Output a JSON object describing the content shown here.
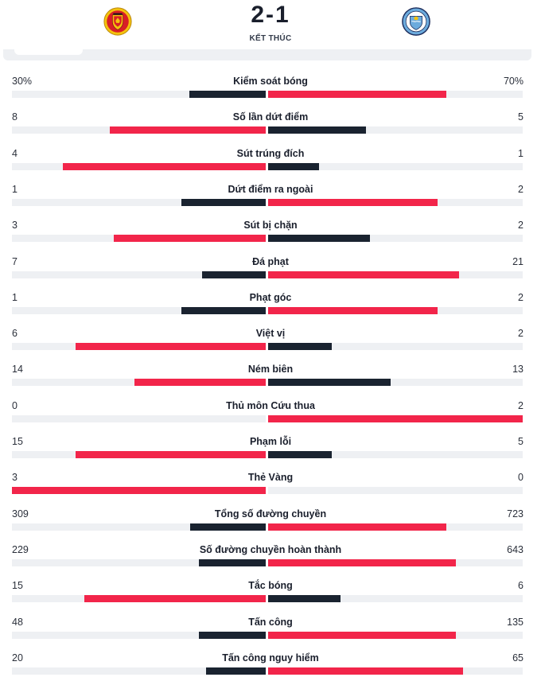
{
  "match": {
    "home_score": "2",
    "away_score": "1",
    "score_separator": "-",
    "status": "KẾT THÚC",
    "home_logo": "manchester-united-crest",
    "away_logo": "manchester-city-crest"
  },
  "colors": {
    "winner": "#f2254a",
    "loser": "#1a2330",
    "track": "#eef0f3"
  },
  "stats": [
    {
      "label": "Kiểm soát bóng",
      "home": "30%",
      "away": "70%",
      "hv": 30,
      "av": 70
    },
    {
      "label": "Số lần dứt điểm",
      "home": "8",
      "away": "5",
      "hv": 8,
      "av": 5
    },
    {
      "label": "Sút trúng đích",
      "home": "4",
      "away": "1",
      "hv": 4,
      "av": 1
    },
    {
      "label": "Dứt điểm ra ngoài",
      "home": "1",
      "away": "2",
      "hv": 1,
      "av": 2
    },
    {
      "label": "Sút bị chặn",
      "home": "3",
      "away": "2",
      "hv": 3,
      "av": 2
    },
    {
      "label": "Đá phạt",
      "home": "7",
      "away": "21",
      "hv": 7,
      "av": 21
    },
    {
      "label": "Phạt góc",
      "home": "1",
      "away": "2",
      "hv": 1,
      "av": 2
    },
    {
      "label": "Việt vị",
      "home": "6",
      "away": "2",
      "hv": 6,
      "av": 2
    },
    {
      "label": "Ném biên",
      "home": "14",
      "away": "13",
      "hv": 14,
      "av": 13
    },
    {
      "label": "Thủ môn Cứu thua",
      "home": "0",
      "away": "2",
      "hv": 0,
      "av": 2
    },
    {
      "label": "Phạm lỗi",
      "home": "15",
      "away": "5",
      "hv": 15,
      "av": 5
    },
    {
      "label": "Thẻ Vàng",
      "home": "3",
      "away": "0",
      "hv": 3,
      "av": 0
    },
    {
      "label": "Tổng số đường chuyền",
      "home": "309",
      "away": "723",
      "hv": 309,
      "av": 723
    },
    {
      "label": "Số đường chuyền hoàn thành",
      "home": "229",
      "away": "643",
      "hv": 229,
      "av": 643
    },
    {
      "label": "Tắc bóng",
      "home": "15",
      "away": "6",
      "hv": 15,
      "av": 6
    },
    {
      "label": "Tấn công",
      "home": "48",
      "away": "135",
      "hv": 48,
      "av": 135
    },
    {
      "label": "Tấn công nguy hiểm",
      "home": "20",
      "away": "65",
      "hv": 20,
      "av": 65
    }
  ]
}
